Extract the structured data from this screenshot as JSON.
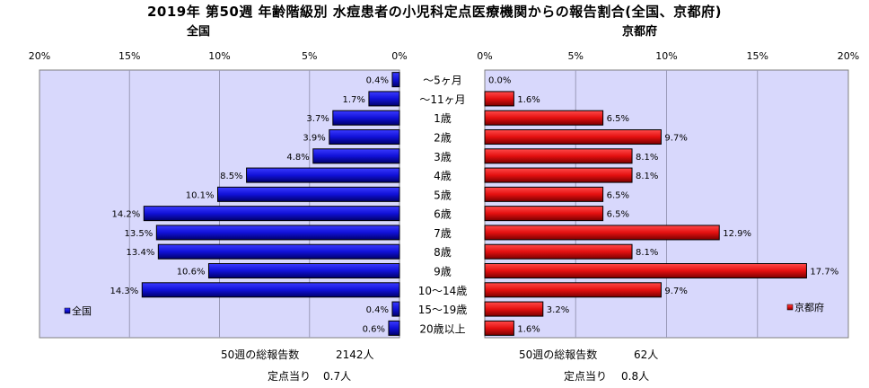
{
  "title": "2019年 第50週 年齢階級別 水痘患者の小児科定点医療機関からの報告割合(全国、京都府)",
  "left_panel": {
    "title": "全国"
  },
  "right_panel": {
    "title": "京都府"
  },
  "colors": {
    "national": "#1111d8",
    "kyoto": "#e41010",
    "plot_bg": "#d8d8fc"
  },
  "chart_data": [
    {
      "type": "bar",
      "orientation": "horizontal",
      "direction": "right-to-left",
      "categories": [
        "〜5ヶ月",
        "〜11ヶ月",
        "1歳",
        "2歳",
        "3歳",
        "4歳",
        "5歳",
        "6歳",
        "7歳",
        "8歳",
        "9歳",
        "10〜14歳",
        "15〜19歳",
        "20歳以上"
      ],
      "series": [
        {
          "name": "全国",
          "values": [
            0.4,
            1.7,
            3.7,
            3.9,
            4.8,
            8.5,
            10.1,
            14.2,
            13.5,
            13.4,
            10.6,
            14.3,
            0.4,
            0.6
          ]
        }
      ],
      "xlim": [
        0,
        20
      ],
      "xticks": [
        "20%",
        "15%",
        "10%",
        "5%",
        "0%"
      ],
      "legend": "left-bottom",
      "grid": true
    },
    {
      "type": "bar",
      "orientation": "horizontal",
      "direction": "left-to-right",
      "categories": [
        "〜5ヶ月",
        "〜11ヶ月",
        "1歳",
        "2歳",
        "3歳",
        "4歳",
        "5歳",
        "6歳",
        "7歳",
        "8歳",
        "9歳",
        "10〜14歳",
        "15〜19歳",
        "20歳以上"
      ],
      "series": [
        {
          "name": "京都府",
          "values": [
            0.0,
            1.6,
            6.5,
            9.7,
            8.1,
            8.1,
            6.5,
            6.5,
            12.9,
            8.1,
            17.7,
            9.7,
            3.2,
            1.6
          ]
        }
      ],
      "xlim": [
        0,
        20
      ],
      "xticks": [
        "0%",
        "5%",
        "10%",
        "15%",
        "20%"
      ],
      "legend": "right-bottom",
      "grid": true
    }
  ],
  "footer": {
    "national_total_label": "50週の総報告数",
    "national_total_value": "2142人",
    "national_per_label": "定点当り",
    "national_per_value": "0.7人",
    "kyoto_total_label": "50週の総報告数",
    "kyoto_total_value": "62人",
    "kyoto_per_label": "定点当り",
    "kyoto_per_value": "0.8人"
  }
}
